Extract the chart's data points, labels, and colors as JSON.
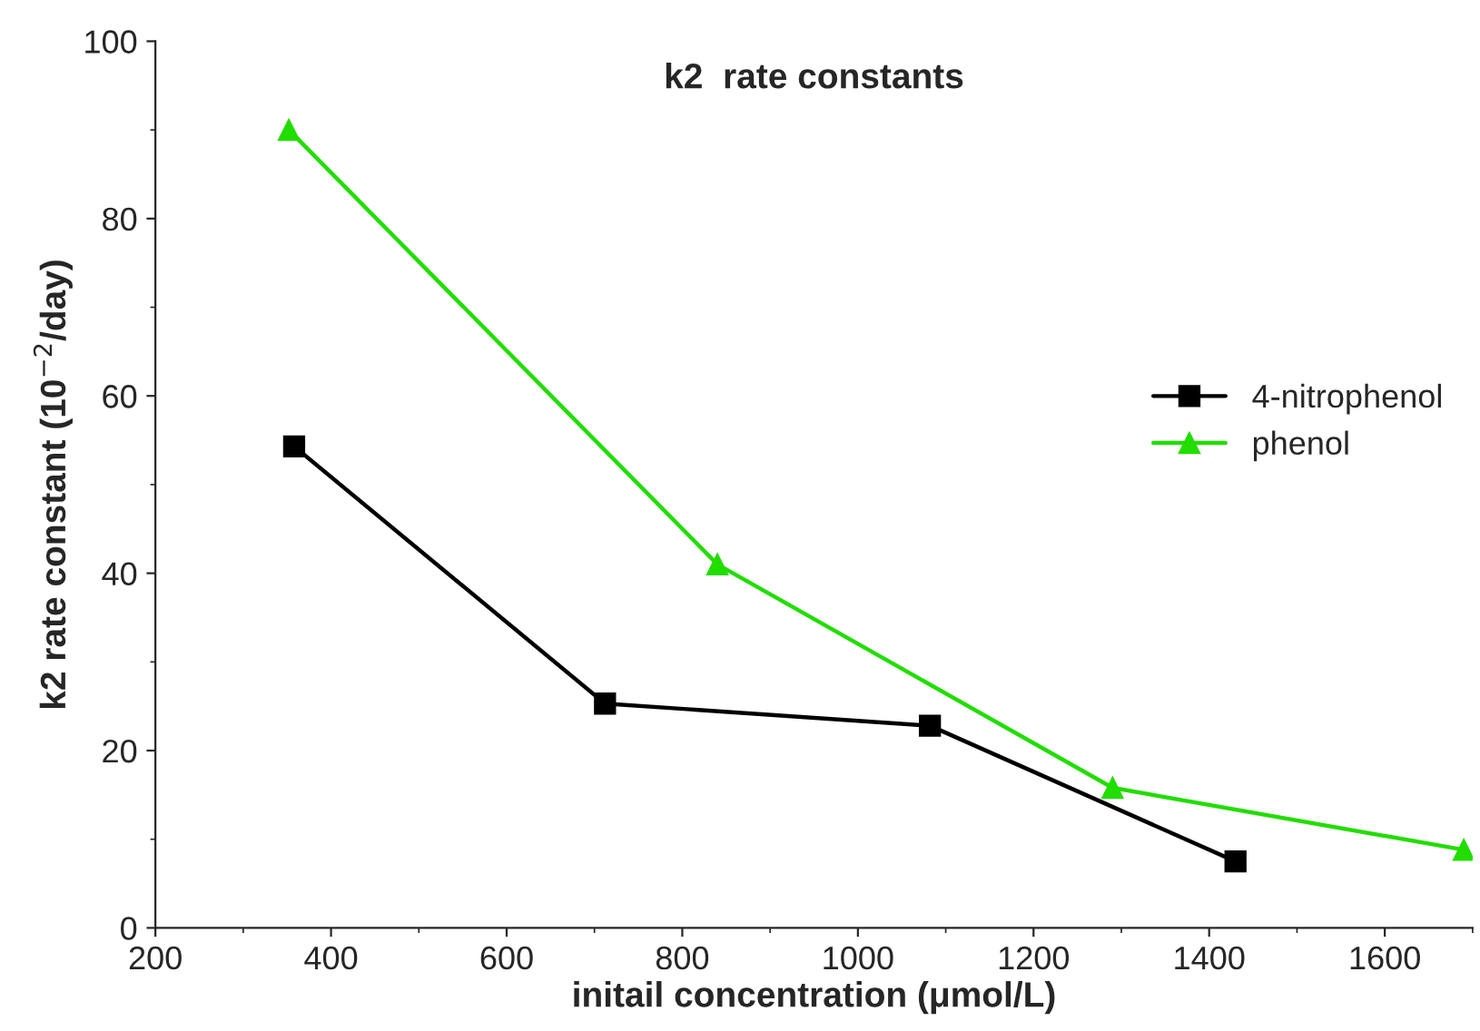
{
  "chart_data": {
    "type": "line",
    "title": "k2  rate constants",
    "xlabel": "initail concentration (μmol/L)",
    "ylabel": "k2 rate constant (10$^{−2}$/day)",
    "series": [
      {
        "name": "4-nitrophenol",
        "color": "#000000",
        "marker": "square",
        "x": [
          358,
          712,
          1082,
          1430
        ],
        "values": [
          54.3,
          25.3,
          22.8,
          7.5
        ]
      },
      {
        "name": "phenol",
        "color": "#22dd00",
        "marker": "triangle",
        "x": [
          352,
          840,
          1290,
          1690
        ],
        "values": [
          90,
          41,
          15.8,
          8.8
        ]
      }
    ],
    "xlim": [
      200,
      1700
    ],
    "xticks": [
      200,
      400,
      600,
      800,
      1000,
      1200,
      1400,
      1600
    ],
    "ylim": [
      0,
      100
    ],
    "yticks": [
      0,
      20,
      40,
      60,
      80,
      100
    ],
    "grid": false,
    "legend": "right",
    "line_style": "solid"
  }
}
